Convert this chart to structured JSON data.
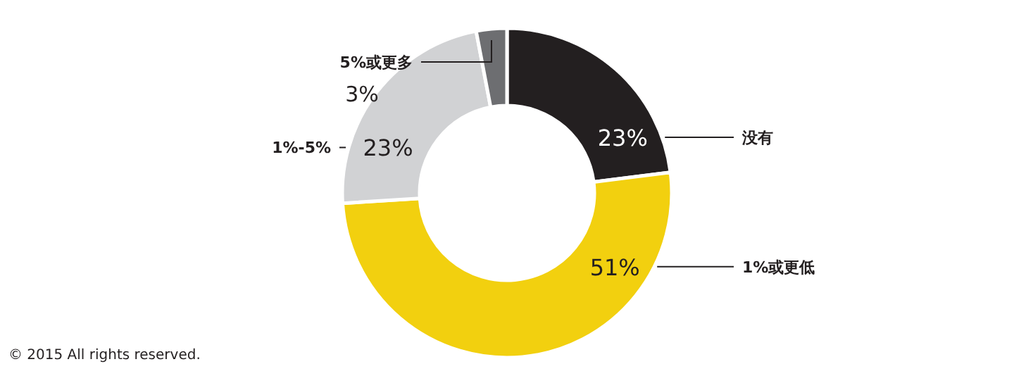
{
  "chart_data": {
    "type": "donut",
    "categories": [
      "没有",
      "1%或更低",
      "1%-5%",
      "5%或更多"
    ],
    "values": [
      23,
      51,
      23,
      3
    ],
    "colors": [
      "#231f20",
      "#f2d00f",
      "#d1d2d4",
      "#6d6e71"
    ],
    "value_labels": [
      "23%",
      "51%",
      "23%",
      "3%"
    ],
    "annotations": [
      "© 2015 All rights reserved."
    ]
  }
}
